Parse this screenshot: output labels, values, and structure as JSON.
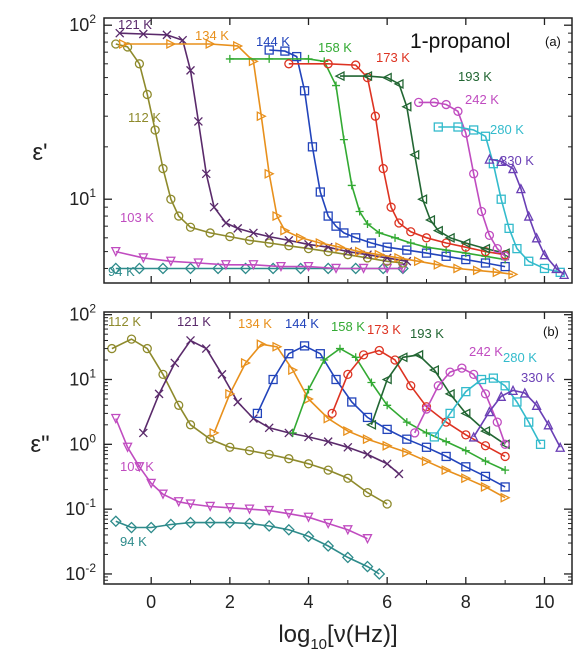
{
  "chart_data": [
    {
      "panel": "(a)",
      "title": "1-propanol",
      "type": "scatter",
      "xlabel_main": "log",
      "xlabel_sub": "10",
      "xlabel_rest": "[ν(Hz)]",
      "ylabel": "ε'",
      "xlim": [
        -1.2,
        10.7
      ],
      "ylim": [
        3.3,
        110
      ],
      "yscale": "log",
      "yticks": [
        {
          "v": 10,
          "base": "10",
          "exp": "1"
        },
        {
          "v": 100,
          "base": "10",
          "exp": "2"
        }
      ],
      "series": [
        {
          "name": "94 K",
          "color": "#2e8b8b",
          "marker": "diamond",
          "x": [
            -0.9,
            -0.3,
            0.3,
            1.0,
            1.7,
            2.4,
            3.1,
            3.8,
            4.5,
            5.2,
            5.9,
            6.4
          ],
          "y": [
            4.0,
            4.0,
            4.0,
            4.0,
            4.0,
            4.0,
            4.0,
            4.0,
            4.0,
            4.0,
            4.0,
            4.0
          ]
        },
        {
          "name": "103 K",
          "color": "#c04cc0",
          "marker": "tri_down",
          "x": [
            -0.9,
            -0.2,
            0.5,
            1.2,
            1.9,
            2.6,
            3.3,
            4.0,
            4.7,
            5.4,
            6.0,
            6.4
          ],
          "y": [
            5.0,
            4.6,
            4.4,
            4.3,
            4.2,
            4.2,
            4.1,
            4.1,
            4.0,
            4.0,
            4.0,
            4.0
          ]
        },
        {
          "name": "112 K",
          "color": "#8e8a2c",
          "marker": "circle",
          "x": [
            -0.9,
            -0.6,
            -0.3,
            -0.1,
            0.1,
            0.3,
            0.5,
            0.7,
            1.0,
            1.5,
            2.0,
            2.5,
            3.0,
            3.5,
            4.0,
            4.5,
            5.0,
            5.5,
            6.0,
            6.4
          ],
          "y": [
            78,
            75,
            60,
            40,
            25,
            15,
            10,
            8,
            6.9,
            6.4,
            6.1,
            5.8,
            5.6,
            5.4,
            5.2,
            5.0,
            4.8,
            4.6,
            4.4,
            4.3
          ]
        },
        {
          "name": "121 K",
          "color": "#5a2a6b",
          "marker": "x",
          "x": [
            -0.8,
            -0.2,
            0.4,
            0.8,
            1.0,
            1.2,
            1.4,
            1.6,
            1.9,
            2.2,
            2.6,
            3.0,
            3.5,
            4.0,
            4.5,
            5.0,
            5.5,
            6.0,
            6.5
          ],
          "y": [
            90,
            89,
            88,
            82,
            55,
            28,
            14,
            9,
            7.3,
            6.8,
            6.4,
            6.1,
            5.8,
            5.5,
            5.3,
            5.0,
            4.8,
            4.6,
            4.4
          ]
        },
        {
          "name": "134 K",
          "color": "#e8901c",
          "marker": "tri_right",
          "x": [
            -0.7,
            0.5,
            1.5,
            2.2,
            2.6,
            2.8,
            3.0,
            3.2,
            3.4,
            3.8,
            4.3,
            4.8,
            5.3,
            5.8,
            6.3,
            6.8,
            7.3,
            7.8,
            8.3,
            8.8,
            9.2
          ],
          "y": [
            78,
            78,
            78,
            76,
            62,
            30,
            14,
            8,
            6.6,
            6.0,
            5.6,
            5.3,
            5.0,
            4.8,
            4.6,
            4.4,
            4.2,
            4.0,
            3.9,
            3.8,
            3.7
          ]
        },
        {
          "name": "144 K",
          "color": "#2244bb",
          "marker": "square",
          "x": [
            3.0,
            3.4,
            3.7,
            3.9,
            4.1,
            4.3,
            4.5,
            4.7,
            4.9,
            5.2,
            5.6,
            6.0,
            6.5,
            7.0,
            7.5,
            8.0,
            8.5,
            9.0
          ],
          "y": [
            72,
            71,
            66,
            42,
            20,
            11,
            8.0,
            7.0,
            6.4,
            6.0,
            5.6,
            5.3,
            5.1,
            4.9,
            4.7,
            4.5,
            4.3,
            4.1
          ]
        },
        {
          "name": "158 K",
          "color": "#33aa33",
          "marker": "plus",
          "x": [
            2.0,
            3.0,
            4.0,
            4.4,
            4.7,
            4.9,
            5.1,
            5.3,
            5.5,
            5.8,
            6.2,
            6.6,
            7.0,
            7.5,
            8.0,
            8.5,
            9.0
          ],
          "y": [
            64,
            64,
            64,
            62,
            45,
            22,
            12,
            8.5,
            7.2,
            6.4,
            6.0,
            5.6,
            5.3,
            5.1,
            4.9,
            4.7,
            4.5
          ]
        },
        {
          "name": "173 K",
          "color": "#dd3322",
          "marker": "circle",
          "x": [
            3.5,
            4.5,
            5.2,
            5.5,
            5.7,
            5.9,
            6.1,
            6.3,
            6.6,
            7.0,
            7.5,
            8.0,
            8.5,
            9.0
          ],
          "y": [
            60,
            60,
            59,
            50,
            30,
            15,
            9,
            7.3,
            6.5,
            6.0,
            5.6,
            5.3,
            5.0,
            4.8
          ]
        },
        {
          "name": "193 K",
          "color": "#226633",
          "marker": "tri_left",
          "x": [
            4.8,
            5.5,
            6.0,
            6.3,
            6.5,
            6.7,
            6.9,
            7.1,
            7.3,
            7.6,
            8.0,
            8.5,
            9.0
          ],
          "y": [
            51,
            51,
            50,
            46,
            34,
            18,
            10,
            7.6,
            6.6,
            6.0,
            5.6,
            5.2,
            4.9
          ]
        },
        {
          "name": "242 K",
          "color": "#c04cc0",
          "marker": "circle",
          "x": [
            6.8,
            7.2,
            7.5,
            7.8,
            8.0,
            8.2,
            8.4,
            8.6,
            8.8,
            9.0
          ],
          "y": [
            36,
            36,
            35,
            32,
            24,
            14,
            8.5,
            6.2,
            5.2,
            4.7
          ]
        },
        {
          "name": "280 K",
          "color": "#33bbcc",
          "marker": "square",
          "x": [
            7.3,
            7.8,
            8.2,
            8.5,
            8.7,
            8.9,
            9.1,
            9.3,
            9.6,
            10.0,
            10.4
          ],
          "y": [
            26,
            26,
            25,
            23,
            16,
            10,
            6.8,
            5.2,
            4.4,
            4.0,
            3.8
          ]
        },
        {
          "name": "330 K",
          "color": "#6a3fb5",
          "marker": "tri_up",
          "x": [
            8.6,
            8.9,
            9.2,
            9.4,
            9.6,
            9.8,
            10.0,
            10.3,
            10.5
          ],
          "y": [
            17,
            16.5,
            15,
            11.5,
            8,
            6,
            4.8,
            4.0,
            3.7
          ]
        }
      ]
    },
    {
      "panel": "(b)",
      "type": "scatter",
      "xlabel_main": "log",
      "xlabel_sub": "10",
      "xlabel_rest": "[ν(Hz)]",
      "ylabel": "ε\"",
      "xlim": [
        -1.2,
        10.7
      ],
      "ylim": [
        0.007,
        110
      ],
      "yscale": "log",
      "xticks": [
        "0",
        "2",
        "4",
        "6",
        "8",
        "10"
      ],
      "yticks": [
        {
          "v": 0.01,
          "base": "10",
          "exp": "-2"
        },
        {
          "v": 0.1,
          "base": "10",
          "exp": "-1"
        },
        {
          "v": 1,
          "base": "10",
          "exp": "0"
        },
        {
          "v": 10,
          "base": "10",
          "exp": "1"
        },
        {
          "v": 100,
          "base": "10",
          "exp": "2"
        }
      ],
      "series": [
        {
          "name": "94 K",
          "color": "#2e8b8b",
          "marker": "diamond",
          "x": [
            -0.9,
            -0.5,
            0,
            0.5,
            1.0,
            1.5,
            2.0,
            2.5,
            3.0,
            3.5,
            4.0,
            4.5,
            5.0,
            5.5,
            5.8
          ],
          "y": [
            0.065,
            0.052,
            0.052,
            0.058,
            0.062,
            0.062,
            0.062,
            0.06,
            0.055,
            0.048,
            0.038,
            0.027,
            0.018,
            0.013,
            0.01
          ]
        },
        {
          "name": "103 K",
          "color": "#c04cc0",
          "marker": "tri_down",
          "x": [
            -0.9,
            -0.6,
            -0.3,
            0,
            0.3,
            0.7,
            1.0,
            1.5,
            2.0,
            2.5,
            3.0,
            3.5,
            4.0,
            4.5,
            5.0,
            5.5
          ],
          "y": [
            2.5,
            0.9,
            0.45,
            0.25,
            0.17,
            0.13,
            0.12,
            0.11,
            0.105,
            0.1,
            0.095,
            0.085,
            0.075,
            0.06,
            0.048,
            0.035
          ]
        },
        {
          "name": "112 K",
          "color": "#8e8a2c",
          "marker": "circle",
          "x": [
            -1.0,
            -0.5,
            -0.1,
            0.3,
            0.7,
            1.0,
            1.5,
            2.0,
            2.5,
            3.0,
            3.5,
            4.0,
            4.5,
            5.0,
            5.5,
            6.0
          ],
          "y": [
            30,
            42,
            30,
            12,
            4.0,
            2.0,
            1.2,
            0.9,
            0.8,
            0.7,
            0.6,
            0.5,
            0.4,
            0.3,
            0.18,
            0.12
          ]
        },
        {
          "name": "121 K",
          "color": "#5a2a6b",
          "marker": "x",
          "x": [
            -0.2,
            0.2,
            0.6,
            1.0,
            1.4,
            1.8,
            2.2,
            2.6,
            3.0,
            3.5,
            4.0,
            4.5,
            5.0,
            5.5,
            6.0,
            6.3
          ],
          "y": [
            1.5,
            6,
            18,
            40,
            30,
            12,
            4.5,
            2.5,
            1.8,
            1.5,
            1.3,
            1.1,
            0.9,
            0.7,
            0.5,
            0.35
          ]
        },
        {
          "name": "134 K",
          "color": "#e8901c",
          "marker": "tri_right",
          "x": [
            1.6,
            2.0,
            2.4,
            2.8,
            3.2,
            3.6,
            4.0,
            4.5,
            5.0,
            5.5,
            6.0,
            6.5,
            7.0,
            7.5,
            8.0,
            8.5,
            9.0
          ],
          "y": [
            1.5,
            6,
            18,
            35,
            32,
            14,
            5,
            2.5,
            1.6,
            1.2,
            0.95,
            0.75,
            0.55,
            0.4,
            0.3,
            0.22,
            0.15
          ]
        },
        {
          "name": "144 K",
          "color": "#2244bb",
          "marker": "square",
          "x": [
            2.7,
            3.1,
            3.5,
            3.9,
            4.3,
            4.7,
            5.1,
            5.5,
            6.0,
            6.5,
            7.0,
            7.5,
            8.0,
            8.5,
            9.0
          ],
          "y": [
            3,
            10,
            25,
            33,
            25,
            10,
            4.5,
            2.6,
            1.7,
            1.2,
            0.9,
            0.65,
            0.45,
            0.32,
            0.22
          ]
        },
        {
          "name": "158 K",
          "color": "#33aa33",
          "marker": "plus",
          "x": [
            3.6,
            4.0,
            4.4,
            4.8,
            5.2,
            5.6,
            6.0,
            6.5,
            7.0,
            7.5,
            8.0,
            8.5,
            9.0
          ],
          "y": [
            1.5,
            7,
            20,
            30,
            22,
            9,
            4,
            2.2,
            1.5,
            1.1,
            0.8,
            0.55,
            0.4
          ]
        },
        {
          "name": "173 K",
          "color": "#dd3322",
          "marker": "circle",
          "x": [
            4.6,
            5.0,
            5.4,
            5.8,
            6.2,
            6.6,
            7.0,
            7.5,
            8.0,
            8.5,
            9.0
          ],
          "y": [
            3,
            12,
            24,
            28,
            20,
            8,
            3.8,
            2.2,
            1.4,
            0.95,
            0.65
          ]
        },
        {
          "name": "193 K",
          "color": "#226633",
          "marker": "tri_left",
          "x": [
            5.6,
            6.0,
            6.4,
            6.8,
            7.2,
            7.6,
            8.0,
            8.5,
            9.0
          ],
          "y": [
            2,
            10,
            22,
            24,
            14,
            6,
            3,
            1.6,
            1.0
          ]
        },
        {
          "name": "242 K",
          "color": "#c04cc0",
          "marker": "circle",
          "x": [
            6.7,
            7.0,
            7.3,
            7.6,
            7.9,
            8.2,
            8.5,
            8.8,
            9.0
          ],
          "y": [
            1.5,
            3.5,
            8,
            13,
            15,
            12,
            6,
            2.2,
            1.0
          ]
        },
        {
          "name": "280 K",
          "color": "#33bbcc",
          "marker": "square",
          "x": [
            7.2,
            7.6,
            8.0,
            8.4,
            8.7,
            9.0,
            9.3,
            9.6,
            9.9
          ],
          "y": [
            1.3,
            3,
            6.5,
            10,
            10.5,
            8,
            4.5,
            2.2,
            1.0
          ]
        },
        {
          "name": "330 K",
          "color": "#6a3fb5",
          "marker": "tri_up",
          "x": [
            8.2,
            8.6,
            8.9,
            9.2,
            9.5,
            9.8,
            10.1,
            10.4
          ],
          "y": [
            1.3,
            3.2,
            5.5,
            6.8,
            6.2,
            4,
            2,
            0.9
          ]
        }
      ]
    }
  ]
}
